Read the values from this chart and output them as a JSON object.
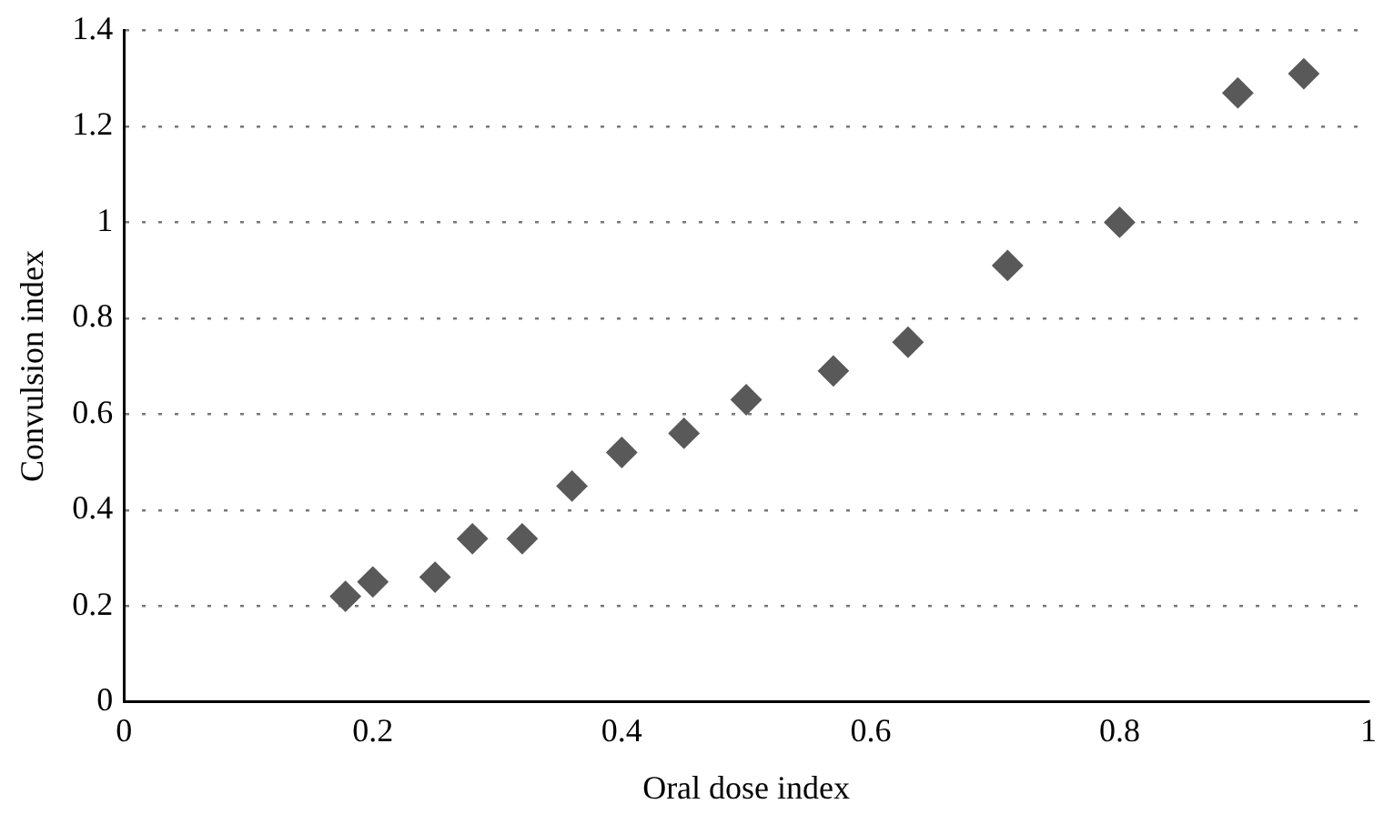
{
  "chart_data": {
    "type": "scatter",
    "xlabel": "Oral dose index",
    "ylabel": "Convulsion index",
    "x": [
      0.178,
      0.2,
      0.25,
      0.28,
      0.32,
      0.36,
      0.4,
      0.45,
      0.5,
      0.57,
      0.63,
      0.71,
      0.8,
      0.895,
      0.948
    ],
    "series": [
      {
        "color": "#595959",
        "values": [
          0.22,
          0.25,
          0.26,
          0.34,
          0.34,
          0.45,
          0.52,
          0.56,
          0.63,
          0.69,
          0.75,
          0.91,
          1.0,
          1.27,
          1.31
        ]
      }
    ],
    "xlim": [
      0,
      1
    ],
    "ylim": [
      0,
      1.4
    ],
    "xticks": [
      0,
      0.2,
      0.4,
      0.6,
      0.8,
      1
    ],
    "yticks": [
      0,
      0.2,
      0.4,
      0.6,
      0.8,
      1,
      1.2,
      1.4
    ],
    "grid": "y",
    "legend": false,
    "marker": "diamond"
  }
}
